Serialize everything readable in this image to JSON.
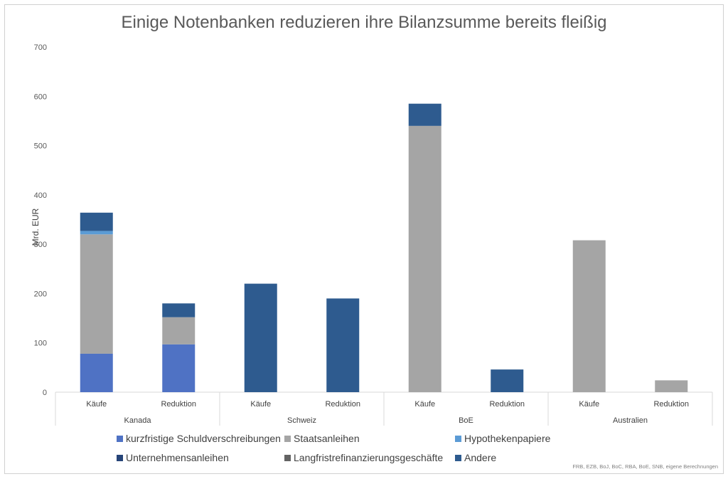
{
  "chart_data": {
    "type": "bar",
    "stacked": true,
    "title": "Einige Notenbanken reduzieren ihre Bilanzsumme bereits fleißig",
    "ylabel": "Mrd. EUR",
    "xlabel": "",
    "ylim": [
      0,
      700
    ],
    "yticks": [
      0,
      100,
      200,
      300,
      400,
      500,
      600,
      700
    ],
    "groups": [
      {
        "name": "Kanada",
        "categories": [
          "Käufe",
          "Reduktion"
        ]
      },
      {
        "name": "Schweiz",
        "categories": [
          "Käufe",
          "Reduktion"
        ]
      },
      {
        "name": "BoE",
        "categories": [
          "Käufe",
          "Reduktion"
        ]
      },
      {
        "name": "Australien",
        "categories": [
          "Käufe",
          "Reduktion"
        ]
      }
    ],
    "categories": [
      "Kanada Käufe",
      "Kanada Reduktion",
      "Schweiz Käufe",
      "Schweiz Reduktion",
      "BoE Käufe",
      "BoE Reduktion",
      "Australien Käufe",
      "Australien Reduktion"
    ],
    "series": [
      {
        "name": "kurzfristige Schuldverschreibungen",
        "color": "#4f72c4",
        "values": [
          78,
          97,
          0,
          0,
          0,
          0,
          0,
          0
        ]
      },
      {
        "name": "Staatsanleihen",
        "color": "#a5a5a5",
        "values": [
          242,
          55,
          0,
          0,
          540,
          0,
          308,
          24
        ]
      },
      {
        "name": "Hypothekenpapiere",
        "color": "#5b9bd5",
        "values": [
          7,
          0,
          0,
          0,
          0,
          0,
          0,
          0
        ]
      },
      {
        "name": "Unternehmensanleihen",
        "color": "#264478",
        "values": [
          0,
          0,
          0,
          0,
          0,
          0,
          0,
          0
        ]
      },
      {
        "name": "Langfristrefinanzierungsgeschäfte",
        "color": "#636363",
        "values": [
          0,
          0,
          0,
          0,
          0,
          0,
          0,
          0
        ]
      },
      {
        "name": "Andere",
        "color": "#2e5b8f",
        "values": [
          37,
          28,
          220,
          190,
          45,
          46,
          0,
          0
        ]
      }
    ],
    "legend_position": "bottom",
    "grid": false
  },
  "source_note": "FRB, EZB, BoJ, BoC, RBA, BoE, SNB, eigene Berechnungen"
}
